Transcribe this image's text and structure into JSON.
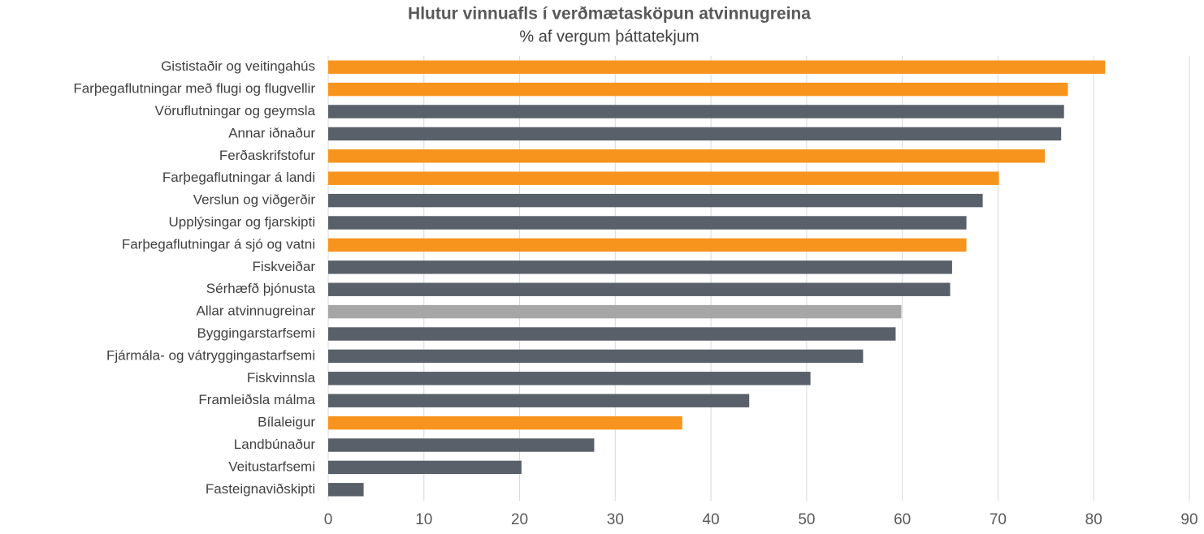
{
  "chart_data": {
    "type": "bar",
    "orientation": "horizontal",
    "title": "Hlutur vinnuafls í verðmætasköpun atvinnugreina",
    "subtitle": "% af vergum  þáttatekjum",
    "categories": [
      "Gististaðir og veitingahús",
      "Farþegaflutningar með flugi og flugvellir",
      "Vöruflutningar og geymsla",
      "Annar iðnaður",
      "Ferðaskrifstofur",
      "Farþegaflutningar á landi",
      "Verslun og viðgerðir",
      "Upplýsingar og fjarskipti",
      "Farþegaflutningar á sjó og vatni",
      "Fiskveiðar",
      "Sérhæfð þjónusta",
      "Allar atvinnugreinar",
      "Byggingarstarfsemi",
      "Fjármála- og vátryggingastarfsemi",
      "Fiskvinnsla",
      "Framleiðsla málma",
      "Bílaleigur",
      "Landbúnaður",
      "Veitustarfsemi",
      "Fasteignaviðskipti"
    ],
    "values": [
      81.2,
      77.3,
      76.9,
      76.6,
      74.9,
      70.1,
      68.4,
      66.7,
      66.7,
      65.2,
      65.0,
      59.9,
      59.3,
      55.9,
      50.4,
      44.0,
      37.0,
      27.8,
      20.2,
      3.7
    ],
    "colors": [
      "#f7941d",
      "#f7941d",
      "#596069",
      "#596069",
      "#f7941d",
      "#f7941d",
      "#596069",
      "#596069",
      "#f7941d",
      "#596069",
      "#596069",
      "#a6a6a6",
      "#596069",
      "#596069",
      "#596069",
      "#596069",
      "#f7941d",
      "#596069",
      "#596069",
      "#596069"
    ],
    "xlim": [
      0,
      90
    ],
    "xticks": [
      0,
      10,
      20,
      30,
      40,
      50,
      60,
      70,
      80,
      90
    ],
    "grid": true
  }
}
